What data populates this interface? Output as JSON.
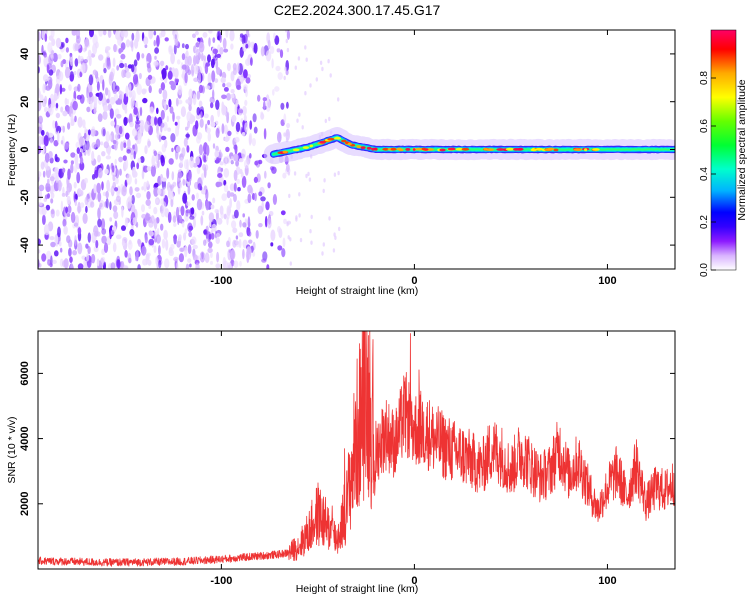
{
  "title": "C2E2.2024.300.17.45.G17",
  "chart_data": [
    {
      "type": "heatmap",
      "xlabel": "Height of straight line (km)",
      "ylabel": "Frequency (Hz)",
      "xlim": [
        -195,
        135
      ],
      "ylim": [
        -50,
        50
      ],
      "xticks": [
        -100,
        0,
        100
      ],
      "yticks": [
        -40,
        -20,
        0,
        20,
        40
      ],
      "colorbar": {
        "label": "Normalized spectral amplitude",
        "range": [
          0,
          1
        ],
        "ticks": [
          "0.0",
          "0.2",
          "0.4",
          "0.6",
          "0.8"
        ],
        "colors": [
          "#ffffff",
          "#d9b3ff",
          "#8c1aff",
          "#3300ff",
          "#0000ff",
          "#00b3ff",
          "#00ffcc",
          "#00ff33",
          "#66ff00",
          "#ffff00",
          "#ffaa00",
          "#ff0000",
          "#ff0066"
        ]
      },
      "features": {
        "noise_region_x": [
          -195,
          -65
        ],
        "signal_onset_x": -73,
        "signal_track_frequency_hz": [
          {
            "x": -73,
            "f": -2
          },
          {
            "x": -55,
            "f": 1
          },
          {
            "x": -40,
            "f": 5
          },
          {
            "x": -33,
            "f": 2
          },
          {
            "x": -20,
            "f": 0
          },
          {
            "x": 0,
            "f": 0
          },
          {
            "x": 100,
            "f": 0
          },
          {
            "x": 135,
            "f": 0
          }
        ],
        "peak_amplitude_region_x": [
          -25,
          95
        ]
      }
    },
    {
      "type": "line",
      "xlabel": "Height of straight line (km)",
      "ylabel": "SNR (10 * v/v)",
      "xlim": [
        -195,
        135
      ],
      "ylim": [
        0,
        7300
      ],
      "xticks": [
        -100,
        0,
        100
      ],
      "yticks": [
        2000,
        4000,
        6000
      ],
      "series": [
        {
          "color": "#ee3333",
          "x": [
            -195,
            -180,
            -160,
            -140,
            -120,
            -100,
            -90,
            -80,
            -70,
            -65,
            -60,
            -55,
            -50,
            -45,
            -40,
            -35,
            -30,
            -25,
            -20,
            -15,
            -10,
            -5,
            0,
            5,
            10,
            15,
            20,
            25,
            30,
            35,
            40,
            45,
            50,
            55,
            60,
            65,
            70,
            75,
            80,
            85,
            90,
            95,
            100,
            105,
            110,
            115,
            120,
            125,
            130,
            135
          ],
          "y": [
            250,
            230,
            200,
            210,
            230,
            300,
            350,
            400,
            450,
            500,
            700,
            1100,
            1700,
            1300,
            900,
            2000,
            4000,
            5500,
            3600,
            4200,
            3800,
            4800,
            4300,
            4300,
            4000,
            3800,
            3600,
            3500,
            3300,
            3100,
            3700,
            3500,
            3000,
            3600,
            3200,
            2800,
            3000,
            3700,
            2900,
            3300,
            2500,
            1800,
            2500,
            3000,
            2200,
            3200,
            2000,
            2500,
            2400,
            2700
          ]
        }
      ]
    }
  ]
}
